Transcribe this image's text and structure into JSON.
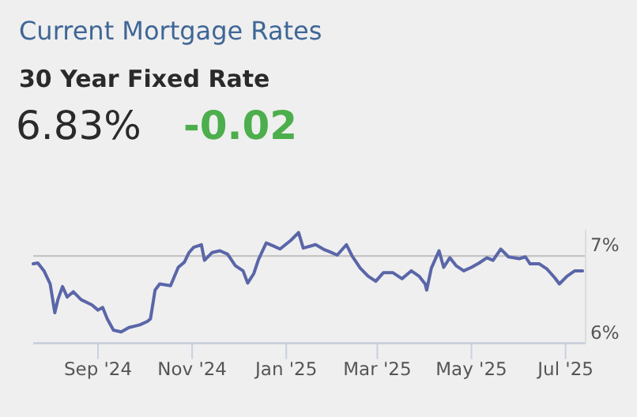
{
  "chart_data": {
    "type": "line",
    "title": "Current Mortgage Rates",
    "subtitle": "30 Year Fixed Rate",
    "annotations": [
      "6.83%",
      "-0.02"
    ],
    "x": [
      "2024-07-21",
      "2024-07-24",
      "2024-07-28",
      "2024-08-01",
      "2024-08-04",
      "2024-08-06",
      "2024-08-09",
      "2024-08-12",
      "2024-08-16",
      "2024-08-21",
      "2024-08-28",
      "2024-09-01",
      "2024-09-04",
      "2024-09-07",
      "2024-09-11",
      "2024-09-16",
      "2024-09-21",
      "2024-09-28",
      "2024-10-03",
      "2024-10-05",
      "2024-10-08",
      "2024-10-11",
      "2024-10-18",
      "2024-10-23",
      "2024-10-27",
      "2024-10-30",
      "2024-11-02",
      "2024-11-07",
      "2024-11-09",
      "2024-11-14",
      "2024-11-19",
      "2024-11-24",
      "2024-11-29",
      "2024-12-04",
      "2024-12-07",
      "2024-12-11",
      "2024-12-14",
      "2024-12-19",
      "2024-12-23",
      "2024-12-28",
      "2025-01-04",
      "2025-01-09",
      "2025-01-12",
      "2025-01-20",
      "2025-01-26",
      "2025-01-29",
      "2025-02-03",
      "2025-02-09",
      "2025-02-13",
      "2025-02-18",
      "2025-02-23",
      "2025-02-28",
      "2025-03-05",
      "2025-03-11",
      "2025-03-17",
      "2025-03-23",
      "2025-03-28",
      "2025-04-01",
      "2025-04-02",
      "2025-04-05",
      "2025-04-10",
      "2025-04-13",
      "2025-04-17",
      "2025-04-21",
      "2025-04-26",
      "2025-05-01",
      "2025-05-06",
      "2025-05-11",
      "2025-05-15",
      "2025-05-20",
      "2025-05-25",
      "2025-06-01",
      "2025-06-05",
      "2025-06-08",
      "2025-06-14",
      "2025-06-19",
      "2025-06-24",
      "2025-06-27",
      "2025-07-02",
      "2025-07-07",
      "2025-07-12"
    ],
    "series": [
      {
        "color": "#5a66a8",
        "values": [
          6.91,
          6.92,
          6.83,
          6.68,
          6.35,
          6.5,
          6.65,
          6.53,
          6.59,
          6.5,
          6.44,
          6.38,
          6.41,
          6.28,
          6.15,
          6.13,
          6.18,
          6.21,
          6.25,
          6.28,
          6.61,
          6.68,
          6.66,
          6.87,
          6.93,
          7.04,
          7.1,
          7.13,
          6.95,
          7.04,
          7.06,
          7.02,
          6.89,
          6.83,
          6.69,
          6.8,
          6.96,
          7.15,
          7.12,
          7.08,
          7.18,
          7.27,
          7.09,
          7.13,
          7.07,
          7.05,
          7.01,
          7.13,
          6.99,
          6.86,
          6.77,
          6.71,
          6.81,
          6.81,
          6.74,
          6.83,
          6.77,
          6.68,
          6.61,
          6.86,
          7.06,
          6.87,
          6.98,
          6.89,
          6.83,
          6.87,
          6.92,
          6.98,
          6.95,
          7.08,
          6.99,
          6.97,
          6.99,
          6.91,
          6.91,
          6.85,
          6.75,
          6.68,
          6.77,
          6.83,
          6.83
        ]
      }
    ],
    "xlim": [
      "2024-07-21",
      "2025-07-14"
    ],
    "xticks": [
      {
        "value": "2024-09-01",
        "label": "Sep '24"
      },
      {
        "value": "2024-11-01",
        "label": "Nov '24"
      },
      {
        "value": "2025-01-01",
        "label": "Jan '25"
      },
      {
        "value": "2025-03-01",
        "label": "Mar '25"
      },
      {
        "value": "2025-05-01",
        "label": "May '25"
      },
      {
        "value": "2025-07-01",
        "label": "Jul '25"
      }
    ],
    "yticks": [
      {
        "value": 6,
        "label": "6%"
      },
      {
        "value": 7,
        "label": "7%"
      }
    ],
    "ylim": [
      6,
      7.3
    ],
    "grid": "y",
    "marker": "none",
    "line_style": "solid"
  }
}
